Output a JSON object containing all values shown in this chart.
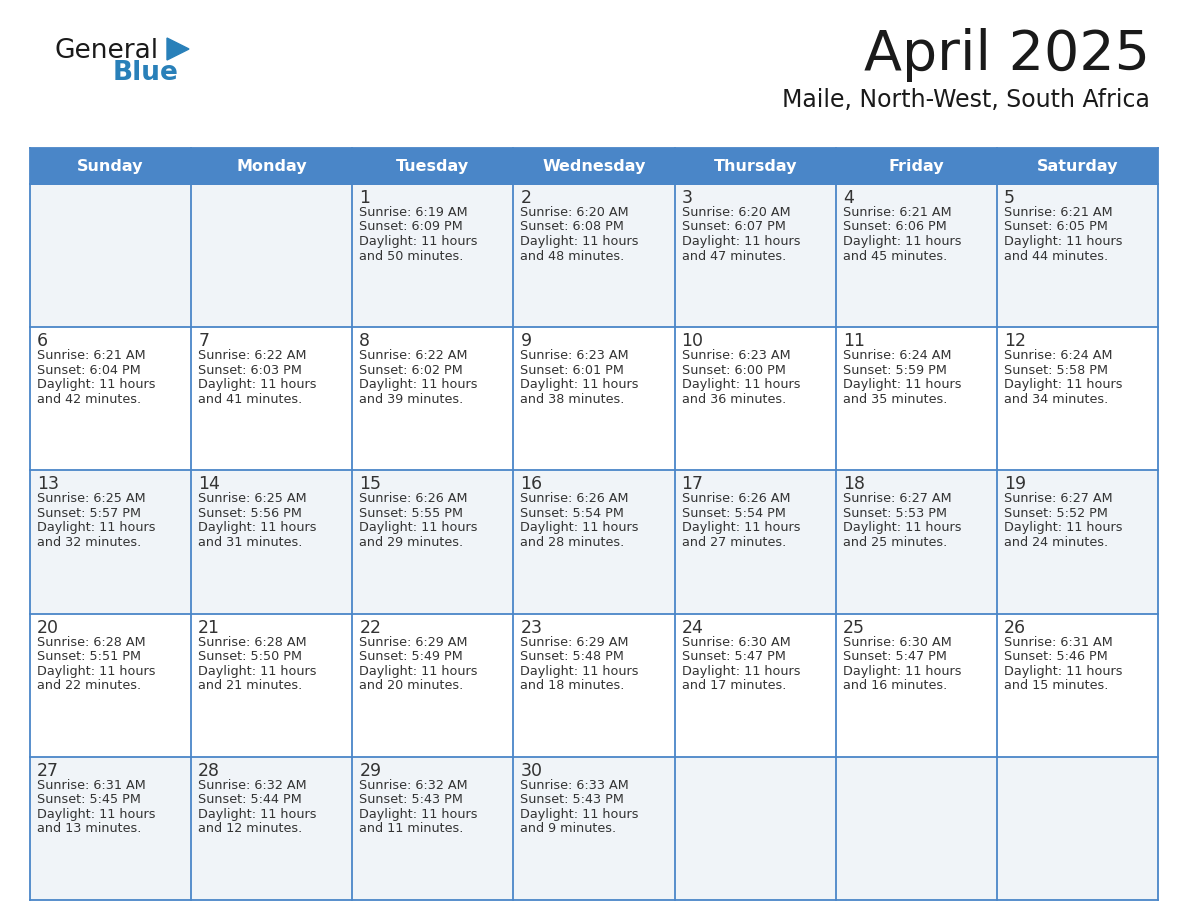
{
  "title": "April 2025",
  "subtitle": "Maile, North-West, South Africa",
  "days_of_week": [
    "Sunday",
    "Monday",
    "Tuesday",
    "Wednesday",
    "Thursday",
    "Friday",
    "Saturday"
  ],
  "header_bg": "#4a86c8",
  "header_text_color": "#ffffff",
  "row_bg_even": "#f0f4f8",
  "row_bg_odd": "#ffffff",
  "border_color": "#4a86c8",
  "text_color": "#333333",
  "date_color": "#333333",
  "weeks": [
    {
      "days": [
        {
          "date": "",
          "sunrise": "",
          "sunset": "",
          "daylight": ""
        },
        {
          "date": "",
          "sunrise": "",
          "sunset": "",
          "daylight": ""
        },
        {
          "date": "1",
          "sunrise": "Sunrise: 6:19 AM",
          "sunset": "Sunset: 6:09 PM",
          "daylight": "Daylight: 11 hours\nand 50 minutes."
        },
        {
          "date": "2",
          "sunrise": "Sunrise: 6:20 AM",
          "sunset": "Sunset: 6:08 PM",
          "daylight": "Daylight: 11 hours\nand 48 minutes."
        },
        {
          "date": "3",
          "sunrise": "Sunrise: 6:20 AM",
          "sunset": "Sunset: 6:07 PM",
          "daylight": "Daylight: 11 hours\nand 47 minutes."
        },
        {
          "date": "4",
          "sunrise": "Sunrise: 6:21 AM",
          "sunset": "Sunset: 6:06 PM",
          "daylight": "Daylight: 11 hours\nand 45 minutes."
        },
        {
          "date": "5",
          "sunrise": "Sunrise: 6:21 AM",
          "sunset": "Sunset: 6:05 PM",
          "daylight": "Daylight: 11 hours\nand 44 minutes."
        }
      ]
    },
    {
      "days": [
        {
          "date": "6",
          "sunrise": "Sunrise: 6:21 AM",
          "sunset": "Sunset: 6:04 PM",
          "daylight": "Daylight: 11 hours\nand 42 minutes."
        },
        {
          "date": "7",
          "sunrise": "Sunrise: 6:22 AM",
          "sunset": "Sunset: 6:03 PM",
          "daylight": "Daylight: 11 hours\nand 41 minutes."
        },
        {
          "date": "8",
          "sunrise": "Sunrise: 6:22 AM",
          "sunset": "Sunset: 6:02 PM",
          "daylight": "Daylight: 11 hours\nand 39 minutes."
        },
        {
          "date": "9",
          "sunrise": "Sunrise: 6:23 AM",
          "sunset": "Sunset: 6:01 PM",
          "daylight": "Daylight: 11 hours\nand 38 minutes."
        },
        {
          "date": "10",
          "sunrise": "Sunrise: 6:23 AM",
          "sunset": "Sunset: 6:00 PM",
          "daylight": "Daylight: 11 hours\nand 36 minutes."
        },
        {
          "date": "11",
          "sunrise": "Sunrise: 6:24 AM",
          "sunset": "Sunset: 5:59 PM",
          "daylight": "Daylight: 11 hours\nand 35 minutes."
        },
        {
          "date": "12",
          "sunrise": "Sunrise: 6:24 AM",
          "sunset": "Sunset: 5:58 PM",
          "daylight": "Daylight: 11 hours\nand 34 minutes."
        }
      ]
    },
    {
      "days": [
        {
          "date": "13",
          "sunrise": "Sunrise: 6:25 AM",
          "sunset": "Sunset: 5:57 PM",
          "daylight": "Daylight: 11 hours\nand 32 minutes."
        },
        {
          "date": "14",
          "sunrise": "Sunrise: 6:25 AM",
          "sunset": "Sunset: 5:56 PM",
          "daylight": "Daylight: 11 hours\nand 31 minutes."
        },
        {
          "date": "15",
          "sunrise": "Sunrise: 6:26 AM",
          "sunset": "Sunset: 5:55 PM",
          "daylight": "Daylight: 11 hours\nand 29 minutes."
        },
        {
          "date": "16",
          "sunrise": "Sunrise: 6:26 AM",
          "sunset": "Sunset: 5:54 PM",
          "daylight": "Daylight: 11 hours\nand 28 minutes."
        },
        {
          "date": "17",
          "sunrise": "Sunrise: 6:26 AM",
          "sunset": "Sunset: 5:54 PM",
          "daylight": "Daylight: 11 hours\nand 27 minutes."
        },
        {
          "date": "18",
          "sunrise": "Sunrise: 6:27 AM",
          "sunset": "Sunset: 5:53 PM",
          "daylight": "Daylight: 11 hours\nand 25 minutes."
        },
        {
          "date": "19",
          "sunrise": "Sunrise: 6:27 AM",
          "sunset": "Sunset: 5:52 PM",
          "daylight": "Daylight: 11 hours\nand 24 minutes."
        }
      ]
    },
    {
      "days": [
        {
          "date": "20",
          "sunrise": "Sunrise: 6:28 AM",
          "sunset": "Sunset: 5:51 PM",
          "daylight": "Daylight: 11 hours\nand 22 minutes."
        },
        {
          "date": "21",
          "sunrise": "Sunrise: 6:28 AM",
          "sunset": "Sunset: 5:50 PM",
          "daylight": "Daylight: 11 hours\nand 21 minutes."
        },
        {
          "date": "22",
          "sunrise": "Sunrise: 6:29 AM",
          "sunset": "Sunset: 5:49 PM",
          "daylight": "Daylight: 11 hours\nand 20 minutes."
        },
        {
          "date": "23",
          "sunrise": "Sunrise: 6:29 AM",
          "sunset": "Sunset: 5:48 PM",
          "daylight": "Daylight: 11 hours\nand 18 minutes."
        },
        {
          "date": "24",
          "sunrise": "Sunrise: 6:30 AM",
          "sunset": "Sunset: 5:47 PM",
          "daylight": "Daylight: 11 hours\nand 17 minutes."
        },
        {
          "date": "25",
          "sunrise": "Sunrise: 6:30 AM",
          "sunset": "Sunset: 5:47 PM",
          "daylight": "Daylight: 11 hours\nand 16 minutes."
        },
        {
          "date": "26",
          "sunrise": "Sunrise: 6:31 AM",
          "sunset": "Sunset: 5:46 PM",
          "daylight": "Daylight: 11 hours\nand 15 minutes."
        }
      ]
    },
    {
      "days": [
        {
          "date": "27",
          "sunrise": "Sunrise: 6:31 AM",
          "sunset": "Sunset: 5:45 PM",
          "daylight": "Daylight: 11 hours\nand 13 minutes."
        },
        {
          "date": "28",
          "sunrise": "Sunrise: 6:32 AM",
          "sunset": "Sunset: 5:44 PM",
          "daylight": "Daylight: 11 hours\nand 12 minutes."
        },
        {
          "date": "29",
          "sunrise": "Sunrise: 6:32 AM",
          "sunset": "Sunset: 5:43 PM",
          "daylight": "Daylight: 11 hours\nand 11 minutes."
        },
        {
          "date": "30",
          "sunrise": "Sunrise: 6:33 AM",
          "sunset": "Sunset: 5:43 PM",
          "daylight": "Daylight: 11 hours\nand 9 minutes."
        },
        {
          "date": "",
          "sunrise": "",
          "sunset": "",
          "daylight": ""
        },
        {
          "date": "",
          "sunrise": "",
          "sunset": "",
          "daylight": ""
        },
        {
          "date": "",
          "sunrise": "",
          "sunset": "",
          "daylight": ""
        }
      ]
    }
  ],
  "logo_text1": "General",
  "logo_text2": "Blue",
  "logo_color1": "#1a1a1a",
  "logo_color2": "#2980b9",
  "logo_triangle_color": "#2980b9"
}
